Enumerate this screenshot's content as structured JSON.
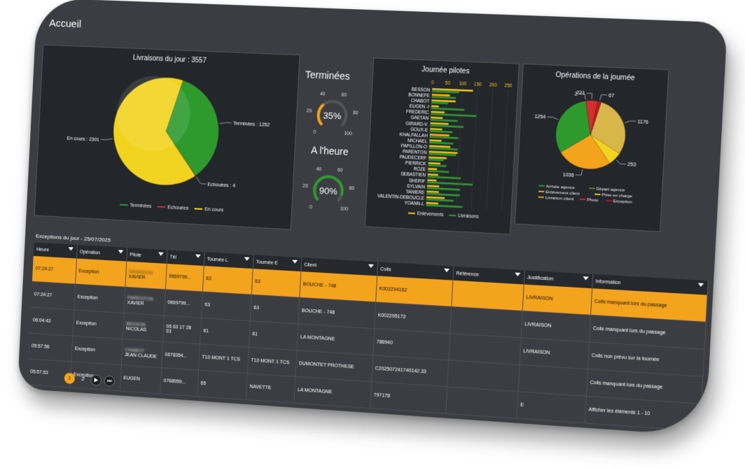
{
  "page": {
    "title": "Accueil"
  },
  "deliveries": {
    "title": "Livraisons du jour : 3557",
    "chart_data": {
      "type": "pie",
      "title": "Livraisons du jour : 3557",
      "slices": [
        {
          "label": "Terminées : 1252",
          "name": "Terminées",
          "value": 1252,
          "color": "#2e9a2e"
        },
        {
          "label": "Echouées : 4",
          "name": "Echouées",
          "value": 4,
          "color": "#d32f2f"
        },
        {
          "label": "En cours : 2301",
          "name": "En cours",
          "value": 2301,
          "color": "#f2d31f"
        }
      ],
      "legend": [
        "Terminées",
        "Echouées",
        "En cours"
      ],
      "legend_position": "bottom"
    }
  },
  "gauges": [
    {
      "title": "Terminées",
      "value_text": "35%",
      "value": 35,
      "ticks": [
        "0",
        "20",
        "40",
        "60",
        "80",
        "100"
      ],
      "color": "#f4a31c"
    },
    {
      "title": "A l'heure",
      "value_text": "90%",
      "value": 90,
      "ticks": [
        "0",
        "20",
        "40",
        "60",
        "80",
        "100"
      ],
      "color": "#2e9a2e"
    }
  ],
  "pilots": {
    "title": "Journée pilotes",
    "chart_data": {
      "type": "bar",
      "title": "Journée pilotes",
      "orientation": "horizontal",
      "xlim": [
        0,
        250
      ],
      "x_ticks": [
        "0",
        "50",
        "100",
        "150",
        "200",
        "250"
      ],
      "categories": [
        "BESSON",
        "BONNEFE",
        "CHABOT",
        "EUGEN -I",
        "FREDERIC",
        "GAETAN",
        "GIRARD-V.",
        "GOUX-E",
        "KHALFALLAH",
        "MICHAEL",
        "PAPILLON-O",
        "PARENTON",
        "PAUDECERF",
        "PIERRICK",
        "ROZE",
        "SEBASTIEN",
        "SHERIF",
        "SYLVAIN",
        "TANIERE",
        "VALENTIN-DEBOUCLE",
        "YOANN-L"
      ],
      "series": [
        {
          "name": "Enlèvements",
          "color": "#f2c318",
          "values": [
            135,
            60,
            80,
            25,
            45,
            40,
            60,
            40,
            65,
            40,
            70,
            95,
            60,
            40,
            30,
            35,
            30,
            40,
            40,
            60,
            40
          ]
        },
        {
          "name": "Livraisons",
          "color": "#2e9a2e",
          "values": [
            90,
            80,
            55,
            110,
            150,
            90,
            110,
            75,
            95,
            80,
            95,
            90,
            50,
            60,
            70,
            110,
            150,
            110,
            110,
            90,
            120
          ]
        }
      ],
      "legend": [
        "Enlèvements",
        "Livraisons"
      ],
      "legend_position": "bottom",
      "grid": true
    }
  },
  "operations": {
    "title": "Opérations de la journée",
    "chart_data": {
      "type": "pie",
      "title": "Opérations de la journée",
      "slices": [
        {
          "label": "1176",
          "name": "Enlèvement client",
          "value": 1176,
          "color": "#d8b64a"
        },
        {
          "label": "253",
          "name": "Prise en charge",
          "value": 253,
          "color": "#f2d31f"
        },
        {
          "label": "1036",
          "name": "Livraison client",
          "value": 1036,
          "color": "#f4a31c"
        },
        {
          "label": "1254",
          "name": "Arrivée agence",
          "value": 1254,
          "color": "#2e9a2e"
        },
        {
          "label": "2",
          "name": "Départ agence",
          "value": 2,
          "color": "#7a7a2a"
        },
        {
          "label": "221",
          "name": "Photo",
          "value": 221,
          "color": "#d32f2f"
        },
        {
          "label": "67",
          "name": "Exception",
          "value": 67,
          "color": "#b71c1c"
        }
      ],
      "legend": [
        "Arrivée agence",
        "Départ agence",
        "Enlèvement client",
        "Prise en charge",
        "Livraison client",
        "Photo",
        "Exception"
      ],
      "legend_position": "bottom"
    }
  },
  "exceptions": {
    "caption": "Exceptions du jour - 25/07/2025",
    "columns": [
      "Heure",
      "Opération",
      "Pilote",
      "Tél",
      "Tournée L",
      "Tournée E",
      "Client",
      "Colis",
      "Référence",
      "Justification",
      "Information"
    ],
    "rows": [
      {
        "heure": "07:24:27",
        "operation": "Exception",
        "pilote_blur": "GRANDON",
        "pilote": "XAVIER",
        "tel": "0669799...",
        "tournee_l": "63",
        "tournee_e": "63",
        "client": "BOUCHE - 748",
        "colis": "K002294162",
        "reference": "",
        "justification": "LIVRAISON",
        "information": "Colis manquant lors du passage",
        "selected": true
      },
      {
        "heure": "07:24:27",
        "operation": "Exception",
        "pilote_blur": "PARENTON",
        "pilote": "XAVIER",
        "tel": "0669799...",
        "tournee_l": "63",
        "tournee_e": "63",
        "client": "BOUCHE - 748",
        "colis": "K002295173",
        "reference": "",
        "justification": "LIVRAISON",
        "information": "Colis manquant lors du passage",
        "selected": false
      },
      {
        "heure": "06:04:43",
        "operation": "Exception",
        "pilote_blur": "BESSON",
        "pilote": "NICOLAS",
        "tel": "06 63 17 28 03",
        "tournee_l": "61",
        "tournee_e": "61",
        "client": "LA MONTAGNE",
        "colis": "788940",
        "reference": "",
        "justification": "LIVRAISON",
        "information": "Colis non prévu sur la tournée",
        "selected": false
      },
      {
        "heure": "05:57:56",
        "operation": "Exception",
        "pilote_blur": "CHABOT",
        "pilote": "JEAN CLAUDE",
        "tel": "0678354...",
        "tournee_l": "T10 MONT 1 TCS",
        "tournee_e": "T10 MONT 1 TCS",
        "client": "DUMONTET PROTHESE",
        "colis": "C202507241740142.33",
        "reference": "",
        "justification": "",
        "information": "Colis manquant lors du passage",
        "selected": false
      },
      {
        "heure": "05:57:53",
        "operation": "Exception",
        "pilote_blur": "",
        "pilote": "EUGEN",
        "tel": "0768959...",
        "tournee_l": "65",
        "tournee_e": "NAVETTE",
        "client": "LA MONTAGNE",
        "colis": "797178",
        "reference": "",
        "justification": "E",
        "information": "Afficher les éléments 1 - 10",
        "selected": false
      }
    ]
  },
  "pager": {
    "pages": [
      "1",
      "2"
    ],
    "active": "1",
    "next_icon": "play-icon",
    "last_icon": "skip-to-end-icon"
  }
}
